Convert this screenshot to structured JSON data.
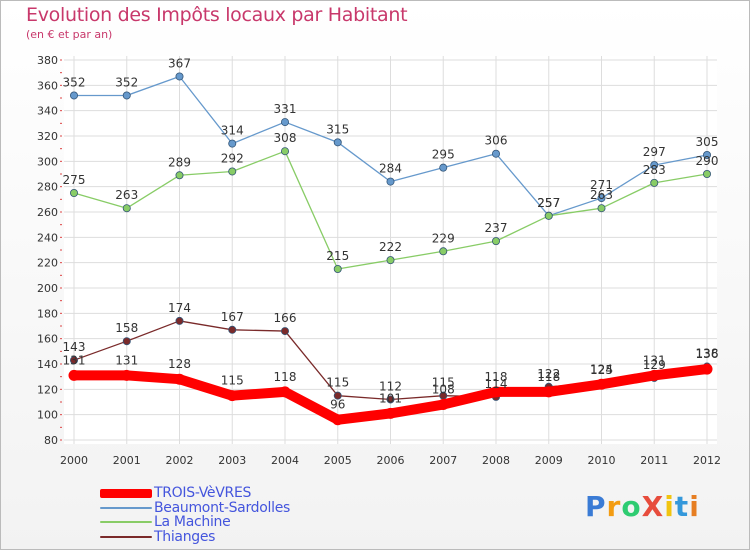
{
  "title": "Evolution des Impôts locaux par Habitant",
  "subtitle": "(en € et par an)",
  "brand": {
    "text": "ProXiti",
    "letters": [
      {
        "ch": "P",
        "color": "#3a7bd5"
      },
      {
        "ch": "r",
        "color": "#f39c12"
      },
      {
        "ch": "o",
        "color": "#2ecc71"
      },
      {
        "ch": "X",
        "color": "#e74c3c"
      },
      {
        "ch": "i",
        "color": "#f1c40f"
      },
      {
        "ch": "t",
        "color": "#3498db"
      },
      {
        "ch": "i",
        "color": "#e67e22"
      }
    ]
  },
  "chart_data": {
    "type": "line",
    "title": "Evolution des Impôts locaux par Habitant",
    "subtitle": "(en € et par an)",
    "xlabel": "",
    "ylabel": "",
    "ylim": [
      80,
      380
    ],
    "yticks": [
      80,
      100,
      120,
      140,
      160,
      180,
      200,
      220,
      240,
      260,
      280,
      300,
      320,
      340,
      360,
      380
    ],
    "grid": true,
    "legend_position": "bottom-left",
    "x": [
      "2000",
      "2001",
      "2002",
      "2003",
      "2004",
      "2005",
      "2006",
      "2007",
      "2008",
      "2009",
      "2010",
      "2011",
      "2012"
    ],
    "series": [
      {
        "name": "TROIS-VèVRES",
        "color": "#ff0000",
        "values": [
          131,
          131,
          128,
          115,
          118,
          96,
          101,
          108,
          118,
          118,
          124,
          131,
          136
        ],
        "labels": [
          "131",
          "131",
          "128",
          "115",
          "118",
          "96",
          "101",
          "108",
          "118",
          "118",
          "124",
          "131",
          "136"
        ],
        "thick": true
      },
      {
        "name": "Beaumont-Sardolles",
        "color": "#6699cc",
        "values": [
          352,
          352,
          367,
          314,
          331,
          315,
          284,
          295,
          306,
          257,
          271,
          297,
          305
        ],
        "labels": [
          "352",
          "352",
          "367",
          "314",
          "331",
          "315",
          "284",
          "295",
          "306",
          "257",
          "271",
          "297",
          "305"
        ],
        "thick": false
      },
      {
        "name": "La Machine",
        "color": "#88cc66",
        "values": [
          275,
          263,
          289,
          292,
          308,
          215,
          222,
          229,
          237,
          257,
          263,
          283,
          290
        ],
        "labels": [
          "275",
          "263",
          "289",
          "292",
          "308",
          "215",
          "222",
          "229",
          "237",
          "257",
          "263",
          "283",
          "290"
        ],
        "thick": false
      },
      {
        "name": "Thianges",
        "color": "#7a2a2a",
        "values": [
          143,
          158,
          174,
          167,
          166,
          115,
          112,
          115,
          114,
          122,
          125,
          129,
          138
        ],
        "labels": [
          "143",
          "158",
          "174",
          "167",
          "166",
          "115",
          "112",
          "115",
          "114",
          "122",
          "125",
          "129",
          "138"
        ],
        "thick": false
      }
    ]
  }
}
